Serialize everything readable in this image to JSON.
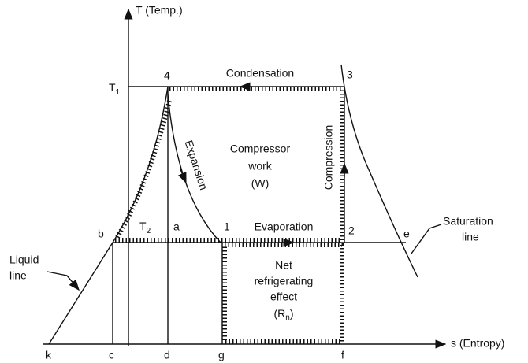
{
  "axes": {
    "y_label": "T (Temp.)",
    "x_label": "s (Entropy)"
  },
  "temperatures": [
    {
      "base": "T",
      "sub": "1"
    },
    {
      "base": "T",
      "sub": "2"
    }
  ],
  "state_points": [
    "1",
    "2",
    "3",
    "4",
    "a",
    "b",
    "e"
  ],
  "entropy_points": [
    "k",
    "c",
    "d",
    "g",
    "f"
  ],
  "processes": [
    "Condensation",
    "Expansion",
    "Compression",
    "Evaporation"
  ],
  "regions": {
    "compressor_work": [
      "Compressor",
      "work",
      "(W)"
    ],
    "net_refrigerating_effect": [
      "Net",
      "refrigerating",
      "effect",
      {
        "base": "(R",
        "sub": "n",
        "end": ")"
      }
    ]
  },
  "callouts": {
    "saturation_line": [
      "Saturation",
      "line"
    ],
    "liquid_line": [
      "Liquid",
      "line"
    ]
  }
}
